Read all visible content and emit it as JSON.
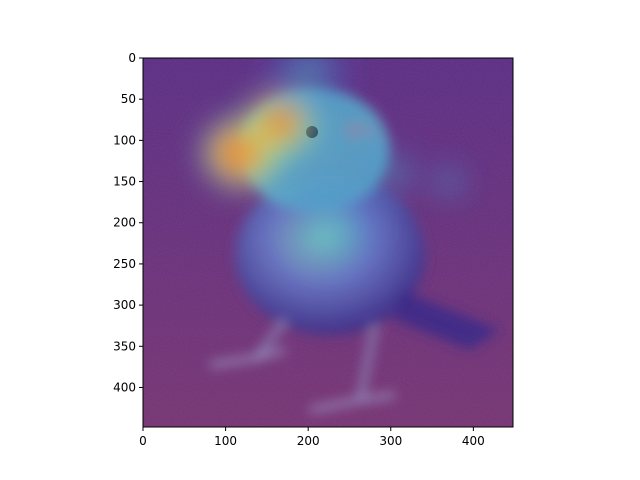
{
  "chart_data": {
    "type": "heatmap",
    "title": "",
    "xlabel": "",
    "ylabel": "",
    "xlim": [
      0,
      448
    ],
    "ylim": [
      448,
      0
    ],
    "y_inverted": true,
    "x_ticks": [
      0,
      100,
      200,
      300,
      400
    ],
    "y_ticks": [
      0,
      50,
      100,
      150,
      200,
      250,
      300,
      350,
      400
    ],
    "x_tick_labels": [
      "0",
      "100",
      "200",
      "300",
      "400"
    ],
    "y_tick_labels": [
      "0",
      "50",
      "100",
      "150",
      "200",
      "250",
      "300",
      "350",
      "400"
    ],
    "grid": false,
    "legend": "none",
    "colormap": "jet",
    "background_image": "small-bird-photo",
    "hotspots": [
      {
        "x": 120,
        "y": 115,
        "intensity": 1.0,
        "spread": 55
      },
      {
        "x": 165,
        "y": 80,
        "intensity": 0.85,
        "spread": 50
      },
      {
        "x": 200,
        "y": 20,
        "intensity": 0.45,
        "spread": 60
      },
      {
        "x": 230,
        "y": 210,
        "intensity": 0.5,
        "spread": 65
      },
      {
        "x": 300,
        "y": 140,
        "intensity": 0.35,
        "spread": 40
      },
      {
        "x": 370,
        "y": 150,
        "intensity": 0.3,
        "spread": 30
      }
    ],
    "colors": {
      "low": "#3a1d8c",
      "ground": "#7a3a55",
      "mid": "#3fd6c0",
      "high": "#ff2a1a"
    }
  }
}
